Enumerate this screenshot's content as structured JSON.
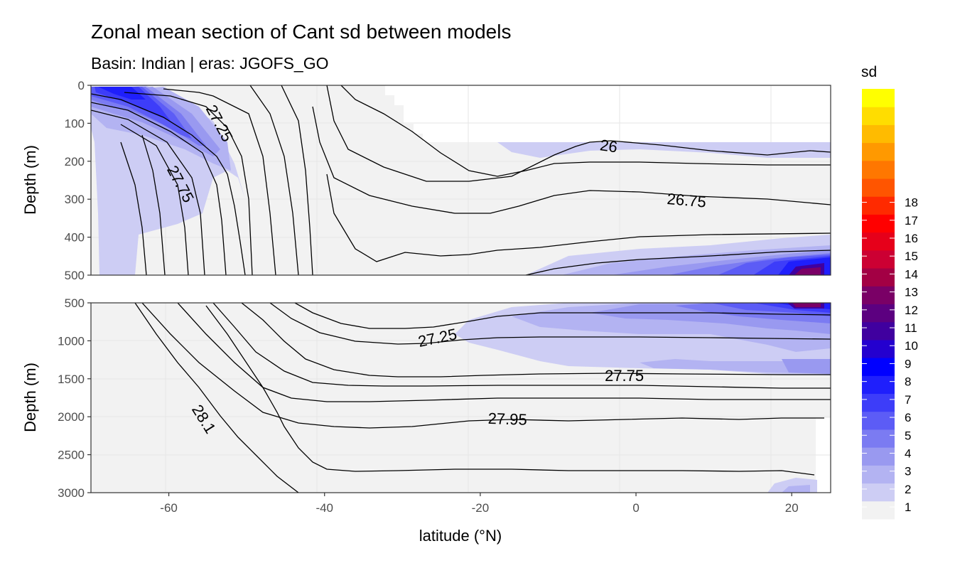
{
  "chart_data": {
    "type": "heatmap",
    "title": "Zonal mean section of Cant sd between models",
    "subtitle": "Basin: Indian | eras: JGOFS_GO",
    "xlabel": "latitude (°N)",
    "ylabel": "Depth (m)",
    "xlim": [
      -70,
      25
    ],
    "x_ticks": [
      "-60",
      "-40",
      "-20",
      "0",
      "20"
    ],
    "x_tick_values": [
      -60,
      -40,
      -20,
      0,
      20
    ],
    "panels": [
      {
        "name": "upper",
        "ylim": [
          0,
          500
        ],
        "y_ticks": [
          "0",
          "100",
          "200",
          "300",
          "400",
          "500"
        ],
        "y_tick_values": [
          0,
          100,
          200,
          300,
          400,
          500
        ],
        "contour_labels": [
          {
            "text": "27.25",
            "lat": -53.5,
            "depth": 100,
            "angle": 62
          },
          {
            "text": "27.75",
            "lat": -58.5,
            "depth": 260,
            "angle": 62
          },
          {
            "text": "26",
            "lat": -3.5,
            "depth": 160,
            "angle": 8
          },
          {
            "text": "26.75",
            "lat": 6.5,
            "depth": 303,
            "angle": 5
          }
        ]
      },
      {
        "name": "lower",
        "ylim": [
          500,
          3000
        ],
        "y_ticks": [
          "500",
          "1000",
          "1500",
          "2000",
          "2500",
          "3000"
        ],
        "y_tick_values": [
          500,
          1000,
          1500,
          2000,
          2500,
          3000
        ],
        "contour_labels": [
          {
            "text": "27.25",
            "lat": -25.5,
            "depth": 960,
            "angle": -12
          },
          {
            "text": "27.75",
            "lat": -1.5,
            "depth": 1460,
            "angle": 0
          },
          {
            "text": "27.95",
            "lat": -16.5,
            "depth": 2030,
            "angle": 2
          },
          {
            "text": "28.1",
            "lat": -55.5,
            "depth": 2030,
            "angle": 58
          }
        ]
      }
    ],
    "legend": {
      "title": "sd",
      "labels": [
        "18",
        "17",
        "16",
        "15",
        "14",
        "13",
        "12",
        "11",
        "10",
        "9",
        "8",
        "7",
        "6",
        "5",
        "4",
        "3",
        "2",
        "1"
      ],
      "colors": [
        "#f2f2f2",
        "#cdcdf4",
        "#b3b3f2",
        "#9999f0",
        "#7b7bf2",
        "#5c5cf6",
        "#3d3df9",
        "#1f1ffc",
        "#0000ff",
        "#2400cf",
        "#40009f",
        "#5c0080",
        "#7a0066",
        "#a30044",
        "#cc0033",
        "#e6001a",
        "#ff0000",
        "#ff2a00",
        "#ff5500",
        "#ff7700",
        "#ff9900",
        "#ffbb00",
        "#ffdd00",
        "#ffff00"
      ],
      "position": "right"
    }
  }
}
